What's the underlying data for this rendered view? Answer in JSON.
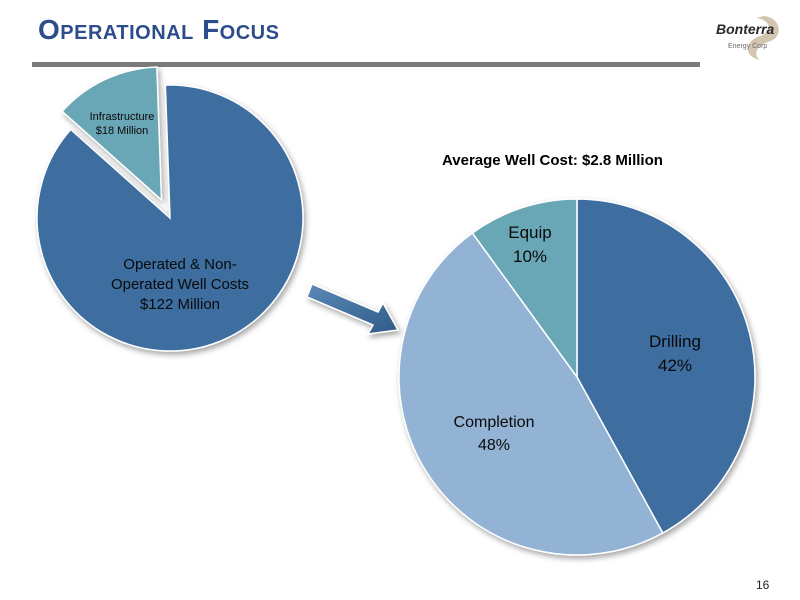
{
  "slide": {
    "title": "Operational Focus",
    "page_number": "16"
  },
  "logo": {
    "text_main": "Bonterra",
    "text_sub": "Energy Corp"
  },
  "colors": {
    "title": "#2d4c8c",
    "rule": "#7b7b7b",
    "dark_blue": "#3e6e9f",
    "light_blue": "#93b3d5",
    "teal": "#6aa7b6",
    "arrow": "#3b6a98"
  },
  "chart_data": [
    {
      "type": "pie",
      "title": "",
      "slices": [
        {
          "label_line1": "Operated & Non-",
          "label_line2": "Operated Well Costs",
          "label_line3": "$122 Million",
          "value": 122,
          "color": "#3e6e9f",
          "exploded": false
        },
        {
          "label_line1": "Infrastructure",
          "label_line2": "$18 Million",
          "value": 18,
          "color": "#6aa7b6",
          "exploded": true
        }
      ]
    },
    {
      "type": "pie",
      "title": "Average Well Cost: $2.8 Million",
      "slices": [
        {
          "label": "Drilling",
          "percent_label": "42%",
          "value": 42,
          "color": "#3e6e9f"
        },
        {
          "label": "Completion",
          "percent_label": "48%",
          "value": 48,
          "color": "#93b3d5"
        },
        {
          "label": "Equip",
          "percent_label": "10%",
          "value": 10,
          "color": "#6aa7b6"
        }
      ]
    }
  ]
}
